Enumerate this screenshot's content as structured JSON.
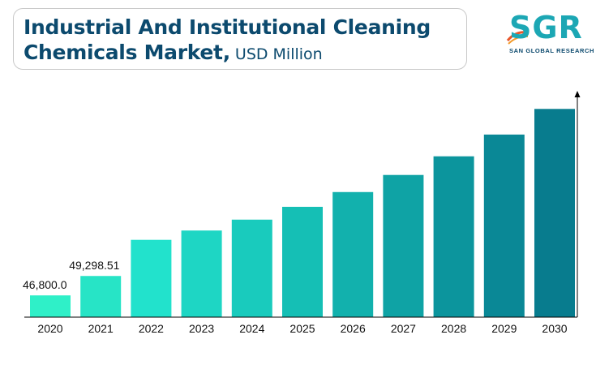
{
  "header": {
    "title_line1": "Industrial And Institutional Cleaning",
    "title_line2": "Chemicals Market,",
    "title_unit": "USD Million"
  },
  "logo": {
    "mark": "SGR",
    "tagline": "SAN GLOBAL RESEARCH"
  },
  "chart_data": {
    "type": "bar",
    "categories": [
      "2020",
      "2021",
      "2022",
      "2023",
      "2024",
      "2025",
      "2026",
      "2027",
      "2028",
      "2029",
      "2030"
    ],
    "values": [
      46800.0,
      49298.51,
      53950,
      55150,
      56550,
      58200,
      60100,
      62300,
      64700,
      67500,
      70800
    ],
    "data_labels": [
      "46,800.0",
      "49,298.51",
      "",
      "",
      "",
      "",
      "",
      "",
      "",
      "",
      ""
    ],
    "ylim": [
      44000,
      72500
    ],
    "colors": [
      "#2ff0c8",
      "#27e4c6",
      "#22e2cc",
      "#1ed6c4",
      "#19cbbd",
      "#15bfb5",
      "#12b1ad",
      "#0fa3a5",
      "#0c959d",
      "#0a8896",
      "#087c8e"
    ],
    "axis_color": "#000000"
  }
}
